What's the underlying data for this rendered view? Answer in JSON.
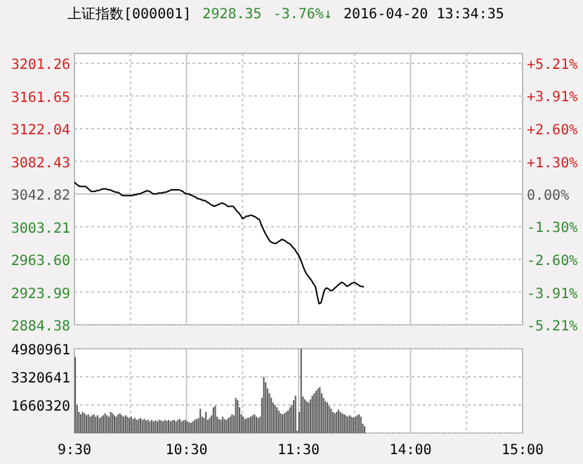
{
  "chart_data": [
    {
      "type": "line",
      "title": "上证指数[000001]",
      "annotations": [
        "2928.35",
        "-3.76%↓",
        "2016-04-20 13:34:35"
      ],
      "categories": [
        null,
        null,
        null,
        null,
        null,
        null,
        null,
        null,
        null,
        null,
        null,
        null,
        null,
        null,
        null,
        null,
        null,
        null,
        null,
        null,
        null,
        null,
        null,
        null,
        null,
        null,
        null,
        null,
        null,
        null,
        null,
        null,
        null,
        null,
        null,
        null,
        null,
        null,
        null,
        null,
        null,
        null,
        null,
        null,
        null,
        null,
        null,
        null,
        null,
        null,
        null,
        null,
        null,
        null,
        null,
        null,
        null,
        null,
        null,
        null,
        null,
        null,
        null,
        null,
        null,
        null,
        null,
        null,
        null,
        null,
        null,
        null,
        null,
        null,
        null,
        null,
        null,
        null,
        null,
        null,
        null,
        null,
        null,
        null,
        null,
        null,
        null,
        null,
        null,
        null,
        null,
        null,
        null,
        null,
        null,
        null,
        null,
        null,
        null,
        null,
        null,
        null,
        null,
        null,
        null,
        null,
        null,
        null,
        null,
        null,
        null,
        null,
        null,
        null,
        null,
        null,
        null,
        null,
        null,
        null,
        null,
        null,
        null,
        null,
        null,
        null,
        null,
        null,
        null,
        null,
        null,
        null,
        null,
        null,
        null,
        null,
        null,
        null,
        null,
        null,
        null,
        null,
        null,
        null,
        null,
        null,
        null,
        null,
        null,
        null,
        null,
        null,
        null,
        null,
        null,
        null,
        null,
        null,
        null,
        null,
        null,
        null,
        null,
        null,
        null,
        null,
        null,
        null,
        null,
        null,
        null,
        null,
        null,
        null,
        null,
        null,
        null,
        null,
        null,
        null,
        null,
        null,
        null,
        null,
        null,
        null,
        null,
        null,
        null,
        null,
        null,
        null,
        null,
        null,
        null,
        null,
        null,
        null,
        null,
        null,
        null,
        null,
        null,
        null,
        null,
        null,
        null,
        null,
        null,
        null,
        null,
        null,
        null,
        null,
        null,
        null,
        null,
        null,
        null,
        null,
        null,
        null,
        null,
        null,
        null,
        null,
        null,
        null,
        null,
        null,
        null,
        null,
        null,
        null,
        null,
        null,
        null,
        null,
        null,
        null,
        null
      ],
      "series": [
        {
          "color": "#000000",
          "values": [
            3057,
            3055,
            3053,
            3052,
            3052,
            3052,
            3052,
            3050,
            3048,
            3046,
            3046,
            3046,
            3047,
            3047,
            3048,
            3049,
            3049,
            3049,
            3048,
            3048,
            3047,
            3046,
            3045,
            3045,
            3044,
            3042,
            3041,
            3041,
            3041,
            3041,
            3041,
            3041,
            3042,
            3042,
            3043,
            3043,
            3044,
            3045,
            3046,
            3047,
            3046,
            3045,
            3043,
            3043,
            3043,
            3044,
            3044,
            3044,
            3045,
            3045,
            3046,
            3047,
            3048,
            3048,
            3048,
            3048,
            3048,
            3047,
            3046,
            3044,
            3043,
            3043,
            3042,
            3041,
            3040,
            3039,
            3037,
            3037,
            3036,
            3035,
            3035,
            3033,
            3032,
            3030,
            3029,
            3028,
            3029,
            3030,
            3031,
            3032,
            3031,
            3030,
            3028,
            3028,
            3028,
            3028,
            3025,
            3022,
            3020,
            3017,
            3013,
            3014,
            3016,
            3016,
            3017,
            3017,
            3016,
            3015,
            3013,
            3012,
            3006,
            3001,
            2996,
            2992,
            2988,
            2985,
            2984,
            2983,
            2983,
            2985,
            2986,
            2988,
            2987,
            2986,
            2984,
            2983,
            2981,
            2978,
            2976,
            2972,
            2969,
            2964,
            2958,
            2952,
            2947,
            2944,
            2941,
            2938,
            2934,
            2931,
            2920,
            2910,
            2911,
            2919,
            2927,
            2929,
            2928,
            2926,
            2926,
            2928,
            2930,
            2932,
            2934,
            2936,
            2935,
            2933,
            2931,
            2932,
            2934,
            2935,
            2936,
            2934,
            2933,
            2931,
            2931,
            2930,
            null,
            null,
            null,
            null,
            null,
            null,
            null,
            null,
            null,
            null,
            null,
            null,
            null,
            null,
            null,
            null,
            null,
            null,
            null,
            null,
            null,
            null,
            null,
            null,
            null,
            null,
            null,
            null,
            null,
            null,
            null,
            null,
            null,
            null,
            null,
            null,
            null,
            null,
            null,
            null,
            null,
            null,
            null,
            null,
            null,
            null,
            null,
            null,
            null,
            null,
            null,
            null,
            null,
            null,
            null,
            null,
            null,
            null,
            null,
            null,
            null,
            null,
            null,
            null,
            null,
            null,
            null,
            null,
            null,
            null,
            null,
            null,
            null,
            null,
            null,
            null,
            null,
            null,
            null,
            null,
            null,
            null,
            null,
            null,
            null
          ]
        }
      ],
      "ylim": [
        2884.38,
        3201.26
      ],
      "yticks": [
        2884.38,
        2923.99,
        {
          "value": 2963.6,
          "label": "2963.60"
        },
        3003.21,
        3042.82,
        3082.43,
        3122.04,
        3161.65,
        3201.26
      ],
      "y2lim": [
        -5.21,
        5.21
      ],
      "y2ticks": [
        {
          "value": -5.21,
          "label": "-5.21%"
        },
        {
          "value": -3.91,
          "label": "-3.91%"
        },
        {
          "value": -2.6,
          "label": "-2.60%"
        },
        {
          "value": -1.3,
          "label": "-1.30%"
        },
        {
          "value": 0,
          "label": "0.00%"
        },
        {
          "value": 1.3,
          "label": "+1.30%"
        },
        {
          "value": 2.6,
          "label": "+2.60%"
        },
        {
          "value": 3.91,
          "label": "+3.91%"
        },
        {
          "value": 5.21,
          "label": "+5.21%"
        }
      ],
      "grid": true,
      "tick_labels": "y"
    },
    {
      "type": "bar",
      "color": "#5f5f5f",
      "categories": [
        "9:30",
        null,
        null,
        null,
        null,
        null,
        null,
        null,
        null,
        null,
        null,
        null,
        null,
        null,
        null,
        null,
        null,
        null,
        null,
        null,
        null,
        null,
        null,
        null,
        null,
        null,
        null,
        null,
        null,
        null,
        null,
        null,
        null,
        null,
        null,
        null,
        null,
        null,
        null,
        null,
        null,
        null,
        null,
        null,
        null,
        null,
        null,
        null,
        null,
        null,
        null,
        null,
        null,
        null,
        null,
        null,
        null,
        null,
        null,
        null,
        "10:30",
        null,
        null,
        null,
        null,
        null,
        null,
        null,
        null,
        null,
        null,
        null,
        null,
        null,
        null,
        null,
        null,
        null,
        null,
        null,
        null,
        null,
        null,
        null,
        null,
        null,
        null,
        null,
        null,
        null,
        null,
        null,
        null,
        null,
        null,
        null,
        null,
        null,
        null,
        null,
        null,
        null,
        null,
        null,
        null,
        null,
        null,
        null,
        null,
        null,
        null,
        null,
        null,
        null,
        null,
        null,
        null,
        null,
        null,
        null,
        "11:30",
        null,
        null,
        null,
        null,
        null,
        null,
        null,
        null,
        null,
        null,
        null,
        null,
        null,
        null,
        null,
        null,
        null,
        null,
        null,
        null,
        null,
        null,
        null,
        null,
        null,
        null,
        null,
        null,
        null,
        null,
        null,
        null,
        null,
        null,
        null,
        null,
        null,
        null,
        null,
        null,
        null,
        null,
        null,
        null,
        null,
        null,
        null,
        null,
        null,
        null,
        null,
        null,
        null,
        null,
        null,
        null,
        null,
        null,
        null,
        "14:00",
        null,
        null,
        null,
        null,
        null,
        null,
        null,
        null,
        null,
        null,
        null,
        null,
        null,
        null,
        null,
        null,
        null,
        null,
        null,
        null,
        null,
        null,
        null,
        null,
        null,
        null,
        null,
        null,
        null,
        null,
        null,
        null,
        null,
        null,
        null,
        null,
        null,
        null,
        null,
        null,
        null,
        null,
        null,
        null,
        null,
        null,
        null,
        null,
        null,
        null,
        null,
        null,
        null,
        null,
        null,
        null,
        null,
        null,
        null,
        "15:00"
      ],
      "values": [
        4480000,
        1660000,
        1250000,
        1110000,
        1250000,
        1160000,
        1050000,
        1110000,
        970000,
        1050000,
        1110000,
        970000,
        1050000,
        890000,
        970000,
        1050000,
        1160000,
        1050000,
        970000,
        1250000,
        1160000,
        1050000,
        970000,
        1110000,
        1160000,
        1050000,
        970000,
        1050000,
        970000,
        890000,
        970000,
        830000,
        890000,
        780000,
        830000,
        890000,
        780000,
        830000,
        750000,
        780000,
        690000,
        780000,
        690000,
        750000,
        690000,
        780000,
        750000,
        690000,
        780000,
        720000,
        780000,
        690000,
        750000,
        780000,
        690000,
        780000,
        830000,
        690000,
        750000,
        780000,
        690000,
        640000,
        610000,
        690000,
        780000,
        830000,
        890000,
        1440000,
        970000,
        890000,
        1250000,
        780000,
        890000,
        1050000,
        1520000,
        1610000,
        970000,
        830000,
        780000,
        970000,
        830000,
        780000,
        890000,
        970000,
        1110000,
        1050000,
        2080000,
        1940000,
        1520000,
        1110000,
        970000,
        830000,
        890000,
        910000,
        970000,
        1050000,
        1110000,
        970000,
        890000,
        970000,
        2080000,
        3320000,
        2990000,
        2630000,
        2350000,
        2080000,
        1800000,
        1660000,
        1520000,
        1330000,
        1160000,
        1110000,
        1160000,
        1250000,
        1330000,
        1520000,
        1660000,
        1940000,
        2210000,
        140000,
        1250000,
        4980000,
        2160000,
        1990000,
        1880000,
        1800000,
        1990000,
        2210000,
        2350000,
        2490000,
        2630000,
        2710000,
        2350000,
        2080000,
        1880000,
        1800000,
        1610000,
        1440000,
        1250000,
        1160000,
        1250000,
        1380000,
        1250000,
        1160000,
        1110000,
        1050000,
        970000,
        1050000,
        970000,
        910000,
        970000,
        1050000,
        1110000,
        970000,
        550000,
        410000,
        null,
        null,
        null,
        null,
        null,
        null,
        null,
        null,
        null,
        null,
        null,
        null,
        null,
        null,
        null,
        null,
        null,
        null,
        null,
        null,
        null,
        null,
        null,
        null,
        null,
        null,
        null,
        null,
        null,
        null,
        null,
        null,
        null,
        null,
        null,
        null,
        null,
        null,
        null,
        null,
        null,
        null,
        null,
        null,
        null,
        null,
        null,
        null,
        null,
        null,
        null,
        null,
        null,
        null,
        null,
        null,
        null,
        null,
        null,
        null,
        null,
        null,
        null,
        null,
        null,
        null,
        null,
        null,
        null,
        null,
        null,
        null,
        null,
        null,
        null,
        null,
        null,
        null,
        null,
        null,
        null,
        null,
        null,
        null,
        null
      ],
      "ylim": [
        0,
        4980961
      ],
      "yticks": [
        {
          "value": 0,
          "label": null
        },
        1660320,
        3320641,
        4980961
      ],
      "grid": true
    }
  ]
}
